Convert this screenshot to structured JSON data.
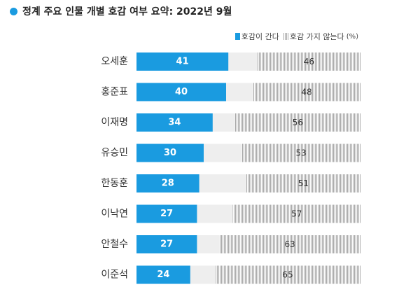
{
  "title": "정계 주요 인물 개별 호감 여부 요약: 2022년 9월",
  "legend": {
    "favorable": "호감이 간다",
    "unfavorable": "호감 가지 않는다",
    "unit": "(%)"
  },
  "colors": {
    "favorable": "#1a9be0",
    "unfavorable_hatch": "#a9a9a9",
    "remainder": "#eeeeee",
    "title_dot": "#1a9be0"
  },
  "chart_data": {
    "type": "bar",
    "orientation": "horizontal",
    "stacked": true,
    "categories": [
      "오세훈",
      "홍준표",
      "이재명",
      "유승민",
      "한동훈",
      "이낙연",
      "안철수",
      "이준석"
    ],
    "series": [
      {
        "name": "호감이 간다",
        "values": [
          41,
          40,
          34,
          30,
          28,
          27,
          27,
          24
        ]
      },
      {
        "name": "호감 가지 않는다",
        "values": [
          46,
          48,
          56,
          53,
          51,
          57,
          63,
          65
        ]
      }
    ],
    "xlim": [
      0,
      100
    ],
    "unit": "(%)",
    "grid": false,
    "legend_position": "top-right"
  }
}
